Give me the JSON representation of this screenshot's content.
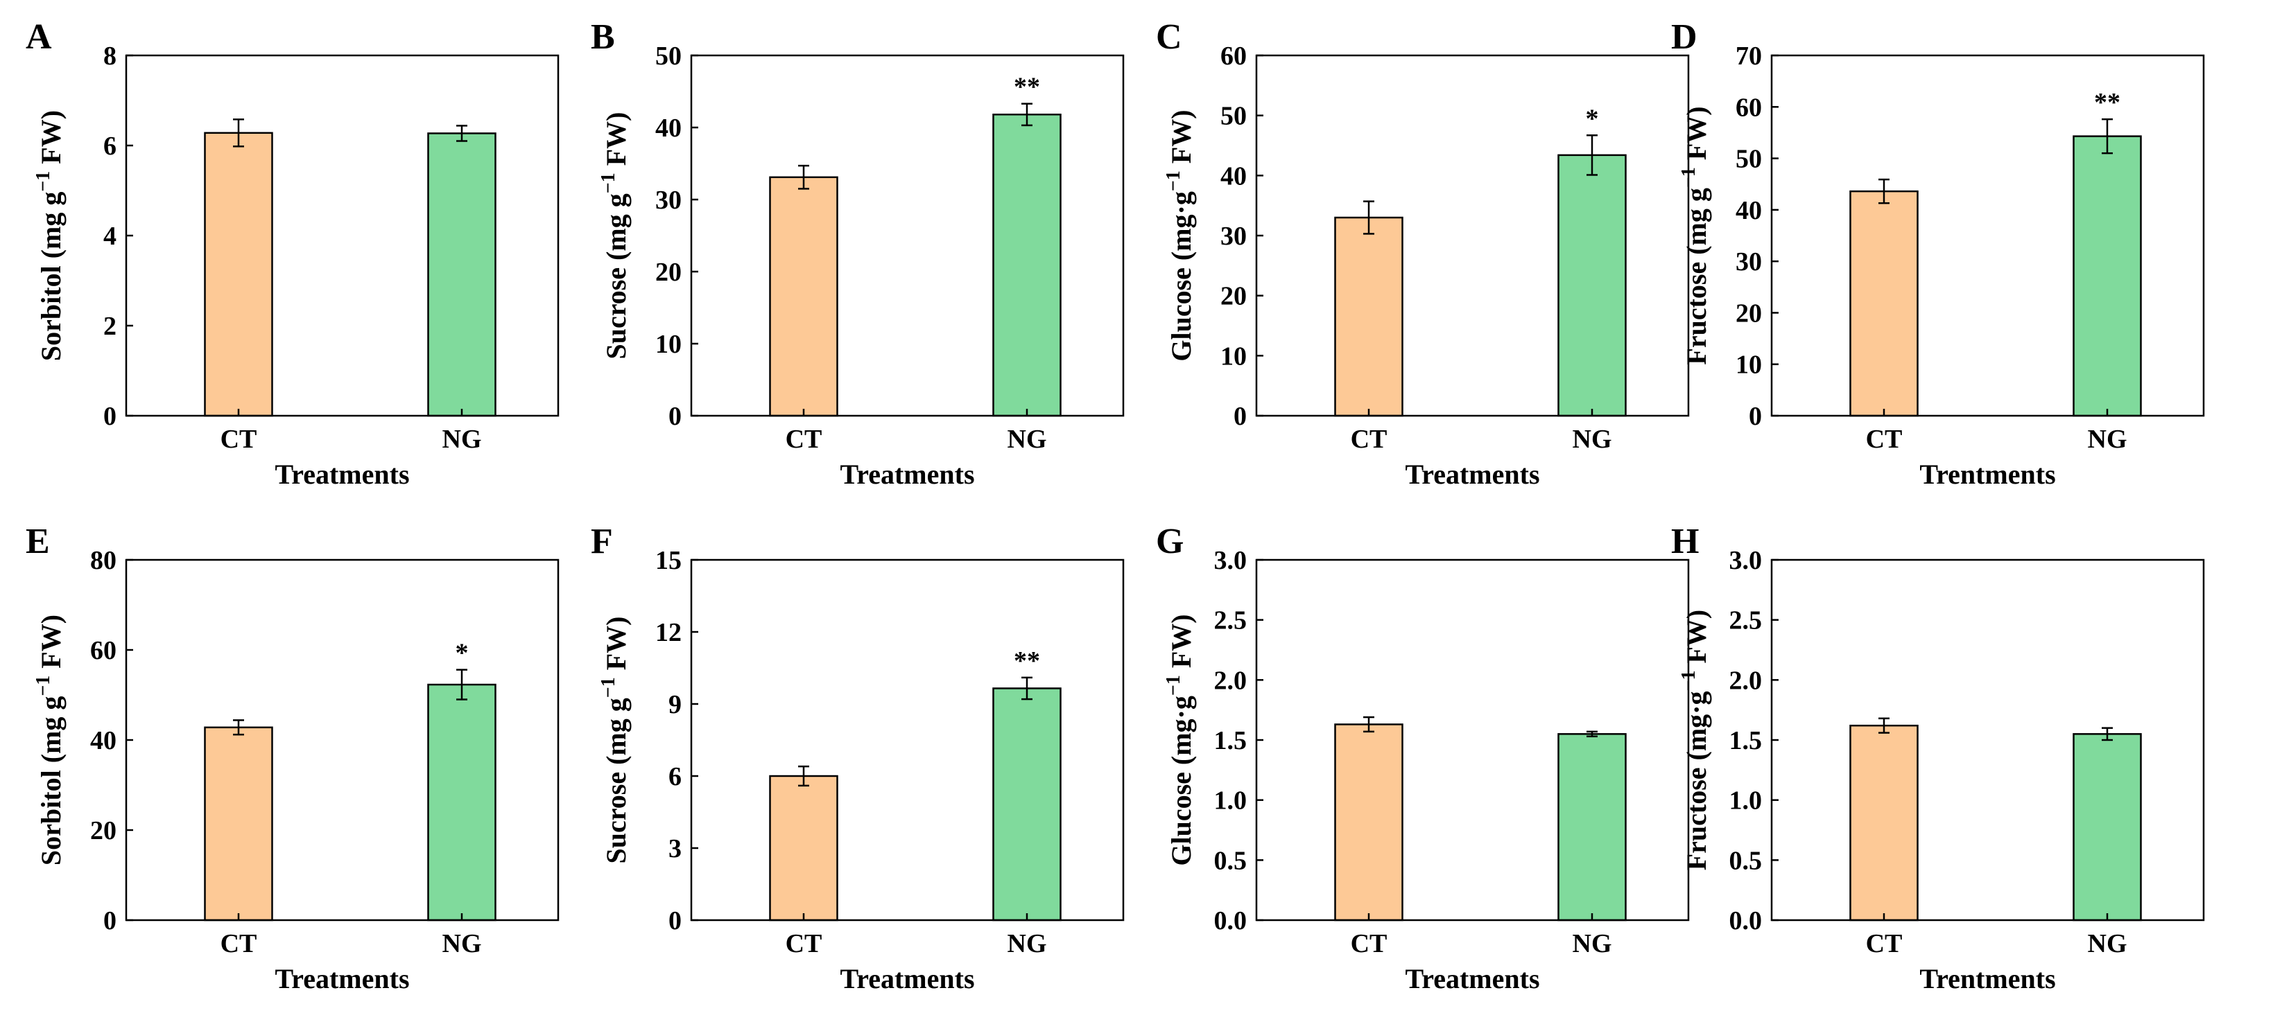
{
  "figure": {
    "colors": {
      "CT": "#FDC996",
      "NG": "#80DA9C",
      "axis": "#000000",
      "bar_edge": "#000000"
    }
  },
  "chart_data": [
    {
      "panel": "A",
      "type": "bar",
      "categories": [
        "CT",
        "NG"
      ],
      "values": [
        6.28,
        6.27
      ],
      "errors": [
        0.3,
        0.17
      ],
      "significance": [
        "",
        ""
      ],
      "ylim": [
        0,
        8
      ],
      "yticks": [
        "0",
        "2",
        "4",
        "6",
        "8"
      ],
      "ytick_values": [
        0,
        2,
        4,
        6,
        8
      ],
      "ylabel_main": "Sorbitol  (mg g",
      "ylabel_sup": "−1",
      "ylabel_tail": " FW)",
      "xlabel": "Treatments"
    },
    {
      "panel": "B",
      "type": "bar",
      "categories": [
        "CT",
        "NG"
      ],
      "values": [
        33.1,
        41.8
      ],
      "errors": [
        1.6,
        1.5
      ],
      "significance": [
        "",
        "**"
      ],
      "ylim": [
        0,
        50
      ],
      "yticks": [
        "0",
        "10",
        "20",
        "30",
        "40",
        "50"
      ],
      "ytick_values": [
        0,
        10,
        20,
        30,
        40,
        50
      ],
      "ylabel_main": "Sucrose (mg g",
      "ylabel_sup": "−1",
      "ylabel_tail": " FW)",
      "xlabel": "Treatments"
    },
    {
      "panel": "C",
      "type": "bar",
      "categories": [
        "CT",
        "NG"
      ],
      "values": [
        33.0,
        43.4
      ],
      "errors": [
        2.7,
        3.3
      ],
      "significance": [
        "",
        "*"
      ],
      "ylim": [
        0,
        60
      ],
      "yticks": [
        "0",
        "10",
        "20",
        "30",
        "40",
        "50",
        "60"
      ],
      "ytick_values": [
        0,
        10,
        20,
        30,
        40,
        50,
        60
      ],
      "ylabel_main": "Glucose (mg·g",
      "ylabel_sup": "−1",
      "ylabel_tail": " FW)",
      "xlabel": "Treatments"
    },
    {
      "panel": "D",
      "type": "bar",
      "categories": [
        "CT",
        "NG"
      ],
      "values": [
        43.6,
        54.3
      ],
      "errors": [
        2.3,
        3.3
      ],
      "significance": [
        "",
        "**"
      ],
      "ylim": [
        0,
        70
      ],
      "yticks": [
        "0",
        "10",
        "20",
        "30",
        "40",
        "50",
        "60",
        "70"
      ],
      "ytick_values": [
        0,
        10,
        20,
        30,
        40,
        50,
        60,
        70
      ],
      "ylabel_main": "Fructose (mg g",
      "ylabel_sup": "−1",
      "ylabel_tail": " FW)",
      "xlabel": "Trentments"
    },
    {
      "panel": "E",
      "type": "bar",
      "categories": [
        "CT",
        "NG"
      ],
      "values": [
        42.8,
        52.3
      ],
      "errors": [
        1.6,
        3.3
      ],
      "significance": [
        "",
        "*"
      ],
      "ylim": [
        0,
        80
      ],
      "yticks": [
        "0",
        "20",
        "40",
        "60",
        "80"
      ],
      "ytick_values": [
        0,
        20,
        40,
        60,
        80
      ],
      "ylabel_main": "Sorbitol  (mg g",
      "ylabel_sup": "−1",
      "ylabel_tail": " FW)",
      "xlabel": "Treatments"
    },
    {
      "panel": "F",
      "type": "bar",
      "categories": [
        "CT",
        "NG"
      ],
      "values": [
        6.0,
        9.65
      ],
      "errors": [
        0.4,
        0.45
      ],
      "significance": [
        "",
        "**"
      ],
      "ylim": [
        0,
        15
      ],
      "yticks": [
        "0",
        "3",
        "6",
        "9",
        "12",
        "15"
      ],
      "ytick_values": [
        0,
        3,
        6,
        9,
        12,
        15
      ],
      "ylabel_main": "Sucrose (mg g",
      "ylabel_sup": "−1",
      "ylabel_tail": " FW)",
      "xlabel": "Treatments"
    },
    {
      "panel": "G",
      "type": "bar",
      "categories": [
        "CT",
        "NG"
      ],
      "values": [
        1.63,
        1.55
      ],
      "errors": [
        0.06,
        0.02
      ],
      "significance": [
        "",
        ""
      ],
      "ylim": [
        0,
        3.0
      ],
      "yticks": [
        "0.0",
        "0.5",
        "1.0",
        "1.5",
        "2.0",
        "2.5",
        "3.0"
      ],
      "ytick_values": [
        0,
        0.5,
        1,
        1.5,
        2,
        2.5,
        3
      ],
      "ylabel_main": "Glucose (mg·g",
      "ylabel_sup": "−1",
      "ylabel_tail": " FW)",
      "xlabel": "Treatments"
    },
    {
      "panel": "H",
      "type": "bar",
      "categories": [
        "CT",
        "NG"
      ],
      "values": [
        1.62,
        1.55
      ],
      "errors": [
        0.06,
        0.05
      ],
      "significance": [
        "",
        ""
      ],
      "ylim": [
        0,
        3.0
      ],
      "yticks": [
        "0.0",
        "0.5",
        "1.0",
        "1.5",
        "2.0",
        "2.5",
        "3.0"
      ],
      "ytick_values": [
        0,
        0.5,
        1,
        1.5,
        2,
        2.5,
        3
      ],
      "ylabel_main": "Fructose (mg·g",
      "ylabel_sup": "−1",
      "ylabel_tail": " FW)",
      "xlabel": "Trentments"
    }
  ]
}
